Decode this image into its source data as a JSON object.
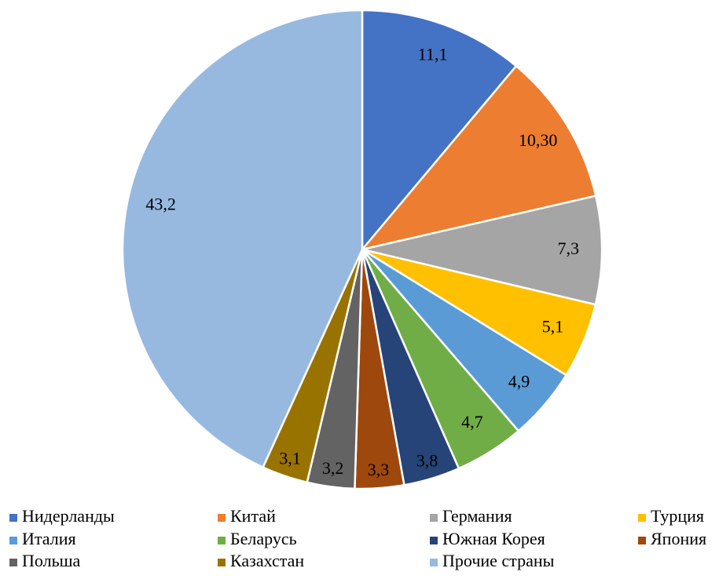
{
  "chart_data": {
    "type": "pie",
    "categories": [
      "Нидерланды",
      "Китай",
      "Германия",
      "Турция",
      "Италия",
      "Беларусь",
      "Южная Корея",
      "Япония",
      "Польша",
      "Казахстан",
      "Прочие страны"
    ],
    "values": [
      11.1,
      10.3,
      7.3,
      5.1,
      4.9,
      4.7,
      3.8,
      3.3,
      3.2,
      3.1,
      43.2
    ],
    "value_labels": [
      "11,1",
      "10,30",
      "7,3",
      "5,1",
      "4,9",
      "4,7",
      "3,8",
      "3,3",
      "3,2",
      "3,1",
      "43,2"
    ],
    "colors": [
      "#4472c4",
      "#ed7d31",
      "#a5a5a5",
      "#ffc000",
      "#5b9bd5",
      "#70ad47",
      "#264478",
      "#9e480e",
      "#636363",
      "#997300",
      "#97b9e0"
    ],
    "legend": "bottom"
  }
}
